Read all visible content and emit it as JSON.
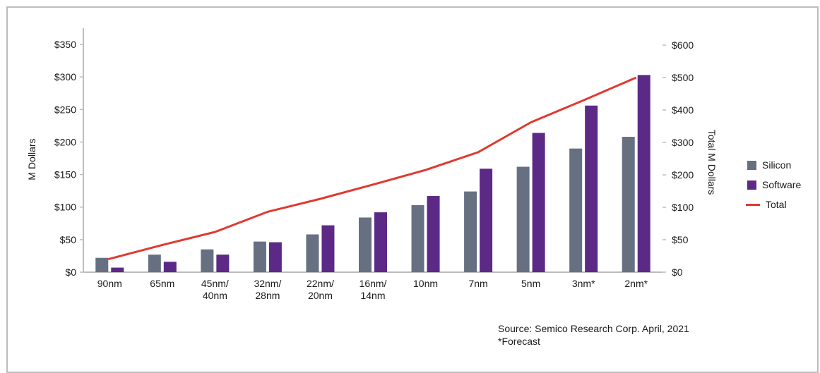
{
  "chart_data": {
    "type": "bar",
    "categories": [
      [
        "90nm"
      ],
      [
        "65nm"
      ],
      [
        "45nm/",
        "40nm"
      ],
      [
        "32nm/",
        "28nm"
      ],
      [
        "22nm/",
        "20nm"
      ],
      [
        "16nm/",
        "14nm"
      ],
      [
        "10nm"
      ],
      [
        "7nm"
      ],
      [
        "5nm"
      ],
      [
        "3nm*"
      ],
      [
        "2nm*"
      ]
    ],
    "series": [
      {
        "name": "Silicon",
        "axis": "left",
        "color": "#667080",
        "values": [
          22,
          27,
          35,
          47,
          58,
          84,
          103,
          124,
          162,
          190,
          208
        ]
      },
      {
        "name": "Software",
        "axis": "left",
        "color": "#5c2a86",
        "values": [
          7,
          16,
          27,
          46,
          72,
          92,
          117,
          159,
          214,
          256,
          303
        ]
      },
      {
        "name": "Total",
        "axis": "right",
        "type": "line",
        "color": "#e03a2f",
        "values": [
          20,
          42,
          62,
          93,
          126,
          170,
          215,
          270,
          362,
          430,
          500
        ]
      }
    ],
    "ylabel": "M Dollars",
    "y2label": "Total M Dollars",
    "ylim": [
      0,
      350
    ],
    "y2lim": [
      0,
      600
    ],
    "yticks": [
      "$0",
      "$50",
      "$100",
      "$150",
      "$200",
      "$250",
      "$300",
      "$350"
    ],
    "y2ticks": [
      "$0",
      "$50",
      "$100",
      "$200",
      "$300",
      "$400",
      "$500",
      "$600"
    ],
    "grid": false,
    "legend": "right"
  },
  "legend": {
    "silicon": "Silicon",
    "software": "Software",
    "total": "Total"
  },
  "source": {
    "line1": "Source: Semico Research Corp. April, 2021",
    "line2": "*Forecast"
  }
}
